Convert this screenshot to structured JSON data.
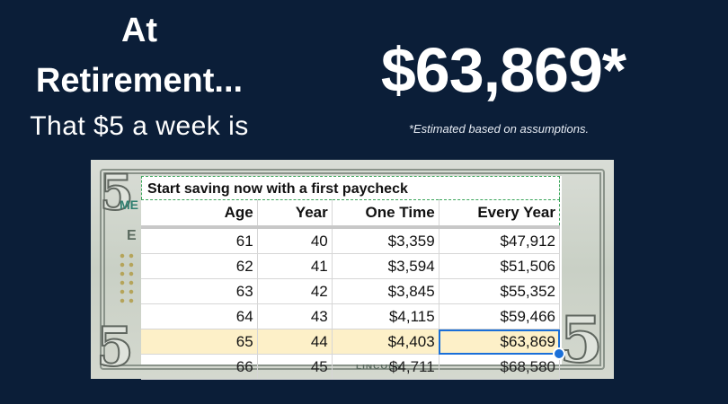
{
  "headline": {
    "line1": "At",
    "line2": "Retirement...",
    "subline": "That $5 a week is"
  },
  "amount": "$63,869*",
  "footnote": "*Estimated based on assumptions.",
  "bill": {
    "denomination": "5",
    "text_me": "ME",
    "text_e": "E",
    "text_lincoln": "LINCOLN"
  },
  "sheet": {
    "title": "Start saving now with a first paycheck",
    "headers": [
      "Age",
      "Year",
      "One Time",
      "Every Year"
    ],
    "rows": [
      [
        "61",
        "40",
        "$3,359",
        "$47,912"
      ],
      [
        "62",
        "41",
        "$3,594",
        "$51,506"
      ],
      [
        "63",
        "42",
        "$3,845",
        "$55,352"
      ],
      [
        "64",
        "43",
        "$4,115",
        "$59,466"
      ],
      [
        "65",
        "44",
        "$4,403",
        "$63,869"
      ],
      [
        "66",
        "45",
        "$4,711",
        "$68,580"
      ]
    ]
  },
  "colors": {
    "background": "#0b1e38",
    "highlight_row": "#fdf0c8",
    "selection": "#1a6fd8"
  }
}
